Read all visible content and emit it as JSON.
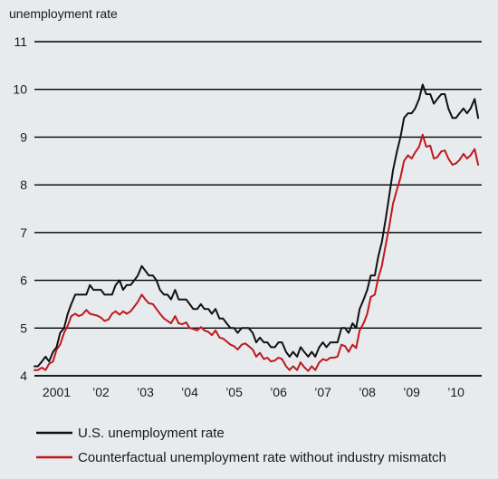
{
  "chart_data": {
    "type": "line",
    "ylabel": "unemployment rate",
    "xlabel": "",
    "title": "",
    "ylim": [
      4,
      11
    ],
    "xlim": [
      2001.0,
      2011.08
    ],
    "y_ticks": [
      4,
      5,
      6,
      7,
      8,
      9,
      10,
      11
    ],
    "x_tick_labels": [
      {
        "x": 2001.5,
        "label": "2001"
      },
      {
        "x": 2002.5,
        "label": "’02"
      },
      {
        "x": 2003.5,
        "label": "’03"
      },
      {
        "x": 2004.5,
        "label": "’04"
      },
      {
        "x": 2005.5,
        "label": "’05"
      },
      {
        "x": 2006.5,
        "label": "’06"
      },
      {
        "x": 2007.5,
        "label": "’07"
      },
      {
        "x": 2008.5,
        "label": "’08"
      },
      {
        "x": 2009.5,
        "label": "’09"
      },
      {
        "x": 2010.5,
        "label": "’10"
      }
    ],
    "grid": true,
    "legend_position": "bottom-left",
    "series": [
      {
        "name": "U.S. unemployment rate",
        "color": "#111111",
        "points": [
          [
            2001.0,
            4.2
          ],
          [
            2001.08,
            4.2
          ],
          [
            2001.17,
            4.3
          ],
          [
            2001.25,
            4.4
          ],
          [
            2001.33,
            4.3
          ],
          [
            2001.42,
            4.5
          ],
          [
            2001.5,
            4.6
          ],
          [
            2001.58,
            4.9
          ],
          [
            2001.67,
            5.0
          ],
          [
            2001.75,
            5.3
          ],
          [
            2001.83,
            5.5
          ],
          [
            2001.92,
            5.7
          ],
          [
            2002.0,
            5.7
          ],
          [
            2002.08,
            5.7
          ],
          [
            2002.17,
            5.7
          ],
          [
            2002.25,
            5.9
          ],
          [
            2002.33,
            5.8
          ],
          [
            2002.42,
            5.8
          ],
          [
            2002.5,
            5.8
          ],
          [
            2002.58,
            5.7
          ],
          [
            2002.67,
            5.7
          ],
          [
            2002.75,
            5.7
          ],
          [
            2002.83,
            5.9
          ],
          [
            2002.92,
            6.0
          ],
          [
            2003.0,
            5.8
          ],
          [
            2003.08,
            5.9
          ],
          [
            2003.17,
            5.9
          ],
          [
            2003.25,
            6.0
          ],
          [
            2003.33,
            6.1
          ],
          [
            2003.42,
            6.3
          ],
          [
            2003.5,
            6.2
          ],
          [
            2003.58,
            6.1
          ],
          [
            2003.67,
            6.1
          ],
          [
            2003.75,
            6.0
          ],
          [
            2003.83,
            5.8
          ],
          [
            2003.92,
            5.7
          ],
          [
            2004.0,
            5.7
          ],
          [
            2004.08,
            5.6
          ],
          [
            2004.17,
            5.8
          ],
          [
            2004.25,
            5.6
          ],
          [
            2004.33,
            5.6
          ],
          [
            2004.42,
            5.6
          ],
          [
            2004.5,
            5.5
          ],
          [
            2004.58,
            5.4
          ],
          [
            2004.67,
            5.4
          ],
          [
            2004.75,
            5.5
          ],
          [
            2004.83,
            5.4
          ],
          [
            2004.92,
            5.4
          ],
          [
            2005.0,
            5.3
          ],
          [
            2005.08,
            5.4
          ],
          [
            2005.17,
            5.2
          ],
          [
            2005.25,
            5.2
          ],
          [
            2005.33,
            5.1
          ],
          [
            2005.42,
            5.0
          ],
          [
            2005.5,
            5.0
          ],
          [
            2005.58,
            4.9
          ],
          [
            2005.67,
            5.0
          ],
          [
            2005.75,
            5.0
          ],
          [
            2005.83,
            5.0
          ],
          [
            2005.92,
            4.9
          ],
          [
            2006.0,
            4.7
          ],
          [
            2006.08,
            4.8
          ],
          [
            2006.17,
            4.7
          ],
          [
            2006.25,
            4.7
          ],
          [
            2006.33,
            4.6
          ],
          [
            2006.42,
            4.6
          ],
          [
            2006.5,
            4.7
          ],
          [
            2006.58,
            4.7
          ],
          [
            2006.67,
            4.5
          ],
          [
            2006.75,
            4.4
          ],
          [
            2006.83,
            4.5
          ],
          [
            2006.92,
            4.4
          ],
          [
            2007.0,
            4.6
          ],
          [
            2007.08,
            4.5
          ],
          [
            2007.17,
            4.4
          ],
          [
            2007.25,
            4.5
          ],
          [
            2007.33,
            4.4
          ],
          [
            2007.42,
            4.6
          ],
          [
            2007.5,
            4.7
          ],
          [
            2007.58,
            4.6
          ],
          [
            2007.67,
            4.7
          ],
          [
            2007.75,
            4.7
          ],
          [
            2007.83,
            4.7
          ],
          [
            2007.92,
            5.0
          ],
          [
            2008.0,
            5.0
          ],
          [
            2008.08,
            4.9
          ],
          [
            2008.17,
            5.1
          ],
          [
            2008.25,
            5.0
          ],
          [
            2008.33,
            5.4
          ],
          [
            2008.42,
            5.6
          ],
          [
            2008.5,
            5.8
          ],
          [
            2008.58,
            6.1
          ],
          [
            2008.67,
            6.1
          ],
          [
            2008.75,
            6.5
          ],
          [
            2008.83,
            6.8
          ],
          [
            2008.92,
            7.3
          ],
          [
            2009.0,
            7.8
          ],
          [
            2009.08,
            8.3
          ],
          [
            2009.17,
            8.7
          ],
          [
            2009.25,
            9.0
          ],
          [
            2009.33,
            9.4
          ],
          [
            2009.42,
            9.5
          ],
          [
            2009.5,
            9.5
          ],
          [
            2009.58,
            9.6
          ],
          [
            2009.67,
            9.8
          ],
          [
            2009.75,
            10.1
          ],
          [
            2009.83,
            9.9
          ],
          [
            2009.92,
            9.9
          ],
          [
            2010.0,
            9.7
          ],
          [
            2010.08,
            9.8
          ],
          [
            2010.17,
            9.9
          ],
          [
            2010.25,
            9.9
          ],
          [
            2010.33,
            9.6
          ],
          [
            2010.42,
            9.4
          ],
          [
            2010.5,
            9.4
          ],
          [
            2010.58,
            9.5
          ],
          [
            2010.67,
            9.6
          ],
          [
            2010.75,
            9.5
          ],
          [
            2010.83,
            9.6
          ],
          [
            2010.92,
            9.8
          ],
          [
            2011.0,
            9.4
          ]
        ]
      },
      {
        "name": "Counterfactual unemployment rate without industry mismatch",
        "color": "#c0181e",
        "points": [
          [
            2001.0,
            4.12
          ],
          [
            2001.08,
            4.12
          ],
          [
            2001.17,
            4.17
          ],
          [
            2001.25,
            4.12
          ],
          [
            2001.33,
            4.25
          ],
          [
            2001.42,
            4.3
          ],
          [
            2001.5,
            4.55
          ],
          [
            2001.58,
            4.65
          ],
          [
            2001.67,
            4.9
          ],
          [
            2001.75,
            5.05
          ],
          [
            2001.83,
            5.25
          ],
          [
            2001.92,
            5.3
          ],
          [
            2002.0,
            5.25
          ],
          [
            2002.08,
            5.28
          ],
          [
            2002.17,
            5.38
          ],
          [
            2002.25,
            5.3
          ],
          [
            2002.33,
            5.28
          ],
          [
            2002.42,
            5.26
          ],
          [
            2002.5,
            5.22
          ],
          [
            2002.58,
            5.15
          ],
          [
            2002.67,
            5.18
          ],
          [
            2002.75,
            5.3
          ],
          [
            2002.83,
            5.35
          ],
          [
            2002.92,
            5.28
          ],
          [
            2003.0,
            5.35
          ],
          [
            2003.08,
            5.3
          ],
          [
            2003.17,
            5.35
          ],
          [
            2003.25,
            5.45
          ],
          [
            2003.33,
            5.55
          ],
          [
            2003.42,
            5.7
          ],
          [
            2003.5,
            5.6
          ],
          [
            2003.58,
            5.52
          ],
          [
            2003.67,
            5.5
          ],
          [
            2003.75,
            5.4
          ],
          [
            2003.83,
            5.3
          ],
          [
            2003.92,
            5.2
          ],
          [
            2004.0,
            5.15
          ],
          [
            2004.08,
            5.1
          ],
          [
            2004.17,
            5.25
          ],
          [
            2004.25,
            5.1
          ],
          [
            2004.33,
            5.08
          ],
          [
            2004.42,
            5.12
          ],
          [
            2004.5,
            5.0
          ],
          [
            2004.58,
            4.98
          ],
          [
            2004.67,
            4.95
          ],
          [
            2004.75,
            5.02
          ],
          [
            2004.83,
            4.95
          ],
          [
            2004.92,
            4.92
          ],
          [
            2005.0,
            4.85
          ],
          [
            2005.08,
            4.95
          ],
          [
            2005.17,
            4.8
          ],
          [
            2005.25,
            4.78
          ],
          [
            2005.33,
            4.72
          ],
          [
            2005.42,
            4.65
          ],
          [
            2005.5,
            4.62
          ],
          [
            2005.58,
            4.55
          ],
          [
            2005.67,
            4.65
          ],
          [
            2005.75,
            4.68
          ],
          [
            2005.83,
            4.62
          ],
          [
            2005.92,
            4.55
          ],
          [
            2006.0,
            4.4
          ],
          [
            2006.08,
            4.48
          ],
          [
            2006.17,
            4.35
          ],
          [
            2006.25,
            4.38
          ],
          [
            2006.33,
            4.3
          ],
          [
            2006.42,
            4.32
          ],
          [
            2006.5,
            4.38
          ],
          [
            2006.58,
            4.35
          ],
          [
            2006.67,
            4.2
          ],
          [
            2006.75,
            4.12
          ],
          [
            2006.83,
            4.2
          ],
          [
            2006.92,
            4.12
          ],
          [
            2007.0,
            4.28
          ],
          [
            2007.08,
            4.18
          ],
          [
            2007.17,
            4.1
          ],
          [
            2007.25,
            4.2
          ],
          [
            2007.33,
            4.12
          ],
          [
            2007.42,
            4.28
          ],
          [
            2007.5,
            4.35
          ],
          [
            2007.58,
            4.32
          ],
          [
            2007.67,
            4.38
          ],
          [
            2007.75,
            4.38
          ],
          [
            2007.83,
            4.4
          ],
          [
            2007.92,
            4.65
          ],
          [
            2008.0,
            4.62
          ],
          [
            2008.08,
            4.5
          ],
          [
            2008.17,
            4.65
          ],
          [
            2008.25,
            4.58
          ],
          [
            2008.33,
            4.95
          ],
          [
            2008.42,
            5.1
          ],
          [
            2008.5,
            5.3
          ],
          [
            2008.58,
            5.65
          ],
          [
            2008.67,
            5.7
          ],
          [
            2008.75,
            6.05
          ],
          [
            2008.83,
            6.3
          ],
          [
            2008.92,
            6.75
          ],
          [
            2009.0,
            7.15
          ],
          [
            2009.08,
            7.6
          ],
          [
            2009.17,
            7.9
          ],
          [
            2009.25,
            8.15
          ],
          [
            2009.33,
            8.5
          ],
          [
            2009.42,
            8.62
          ],
          [
            2009.5,
            8.55
          ],
          [
            2009.58,
            8.68
          ],
          [
            2009.67,
            8.8
          ],
          [
            2009.75,
            9.05
          ],
          [
            2009.83,
            8.8
          ],
          [
            2009.92,
            8.82
          ],
          [
            2010.0,
            8.55
          ],
          [
            2010.08,
            8.58
          ],
          [
            2010.17,
            8.7
          ],
          [
            2010.25,
            8.72
          ],
          [
            2010.33,
            8.55
          ],
          [
            2010.42,
            8.42
          ],
          [
            2010.5,
            8.45
          ],
          [
            2010.58,
            8.52
          ],
          [
            2010.67,
            8.65
          ],
          [
            2010.75,
            8.55
          ],
          [
            2010.83,
            8.62
          ],
          [
            2010.92,
            8.75
          ],
          [
            2011.0,
            8.42
          ]
        ]
      }
    ]
  }
}
